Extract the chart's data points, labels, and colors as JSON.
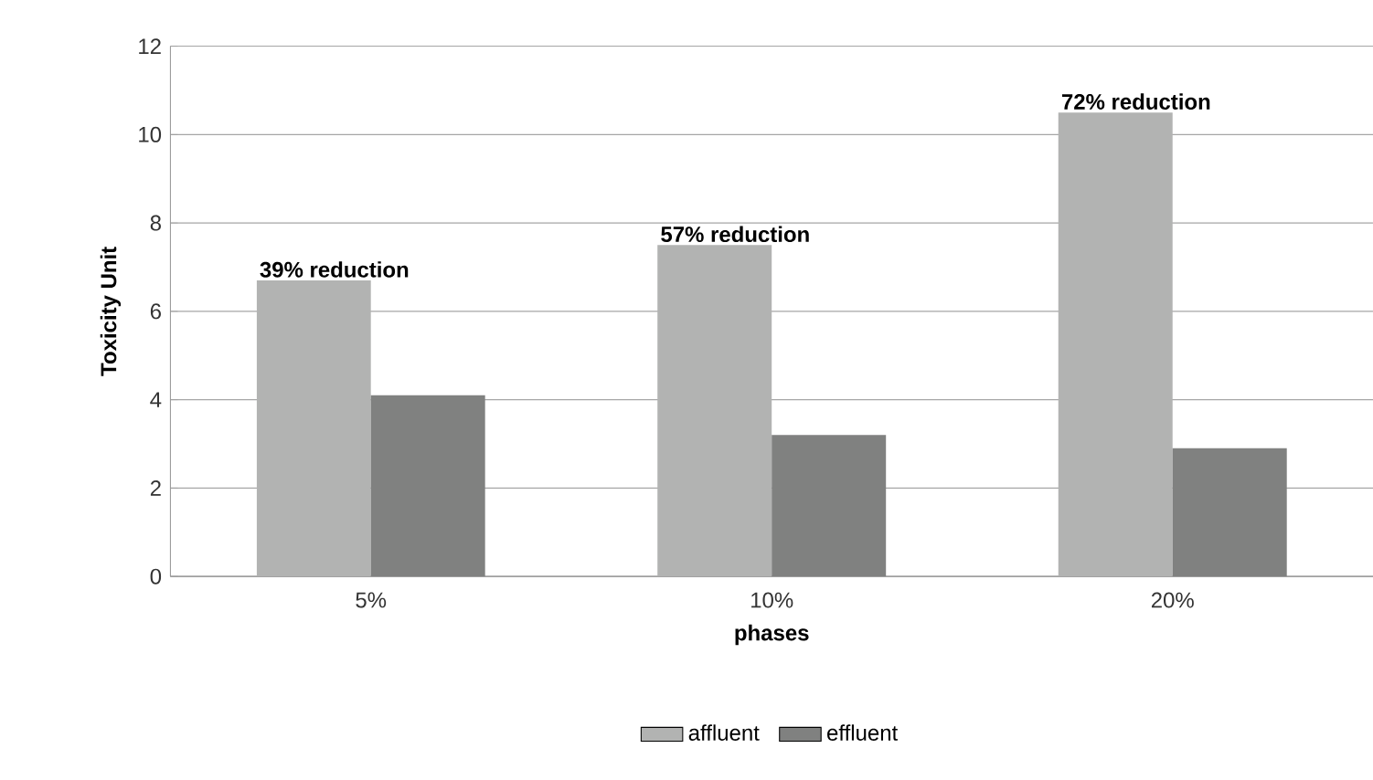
{
  "chart_data": {
    "type": "bar",
    "xlabel": "phases",
    "ylabel": "Toxicity Unit",
    "categories": [
      "5%",
      "10%",
      "20%"
    ],
    "series": [
      {
        "name": "affluent",
        "color": "#b2b3b2",
        "values": [
          6.7,
          7.5,
          10.5
        ]
      },
      {
        "name": "effluent",
        "color": "#808180",
        "values": [
          4.1,
          3.2,
          2.9
        ]
      }
    ],
    "ylim": [
      0,
      12
    ],
    "yticks": [
      0,
      2,
      4,
      6,
      8,
      10,
      12
    ],
    "grid": "y",
    "legend": "bottom",
    "annotations": [
      {
        "text": "39% reduction",
        "x": "5%",
        "y": 6.7
      },
      {
        "text": "57% reduction",
        "x": "10%",
        "y": 7.5
      },
      {
        "text": "72% reduction",
        "x": "20%",
        "y": 10.5
      }
    ]
  }
}
